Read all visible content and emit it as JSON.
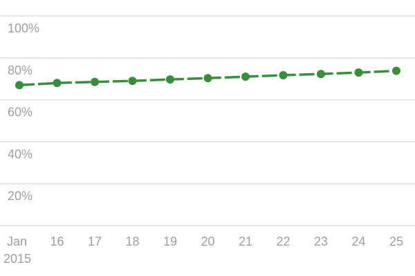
{
  "chart_data": {
    "type": "line",
    "x": [
      "2015-01-15",
      "2015-01-16",
      "2015-01-17",
      "2015-01-18",
      "2015-01-19",
      "2015-01-20",
      "2015-01-21",
      "2015-01-22",
      "2015-01-23",
      "2015-01-24",
      "2015-01-25"
    ],
    "x_tick_labels": [
      "Jan",
      "16",
      "17",
      "18",
      "19",
      "20",
      "21",
      "22",
      "23",
      "24",
      "25"
    ],
    "x_tick_sublabel": "2015",
    "series": [
      {
        "values": [
          67,
          68,
          68.5,
          69,
          69.7,
          70.3,
          71,
          71.7,
          72.3,
          73,
          73.8
        ],
        "color": "#388e3c",
        "line_style": "dashed",
        "markers": true
      }
    ],
    "y_ticks": [
      "20%",
      "40%",
      "60%",
      "80%",
      "100%"
    ],
    "ylim": [
      0,
      100
    ],
    "y_unit": "%",
    "grid": true,
    "legend": "none",
    "gridline_color": "#dddddd",
    "tick_label_color": "#9e9e9e"
  }
}
